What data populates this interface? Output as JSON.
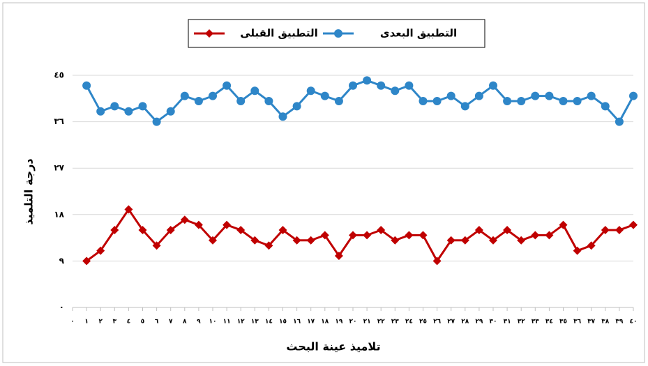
{
  "chart_data": {
    "type": "line",
    "x_label": "تلاميذ عينة البحث",
    "y_label": "درجة التلميذ",
    "x": [
      1,
      2,
      3,
      4,
      5,
      6,
      7,
      8,
      9,
      10,
      11,
      12,
      13,
      14,
      15,
      16,
      17,
      18,
      19,
      20,
      21,
      22,
      23,
      24,
      25,
      26,
      27,
      28,
      29,
      30,
      31,
      32,
      33,
      34,
      35,
      36,
      37,
      38,
      39,
      40
    ],
    "series": [
      {
        "name": "التطبيق البعدى",
        "color": "#2e86c8",
        "marker": "circle",
        "values": [
          43,
          38,
          39,
          38,
          39,
          36,
          38,
          41,
          40,
          41,
          43,
          40,
          42,
          40,
          37,
          39,
          42,
          41,
          40,
          43,
          44,
          43,
          42,
          43,
          40,
          40,
          41,
          39,
          41,
          43,
          40,
          40,
          41,
          41,
          40,
          40,
          41,
          39,
          36,
          41
        ]
      },
      {
        "name": "التطبيق القبلى",
        "color": "#c00000",
        "marker": "diamond",
        "values": [
          9,
          11,
          15,
          19,
          15,
          12,
          15,
          17,
          16,
          13,
          16,
          15,
          13,
          12,
          15,
          13,
          13,
          14,
          10,
          14,
          14,
          15,
          13,
          14,
          14,
          9,
          13,
          13,
          15,
          13,
          15,
          13,
          14,
          14,
          16,
          11,
          12,
          15,
          15,
          16
        ]
      }
    ],
    "xlim": [
      0,
      40
    ],
    "ylim": [
      0,
      45
    ],
    "yticks": [
      {
        "value": 0,
        "label": "٠"
      },
      {
        "value": 9,
        "label": "٩"
      },
      {
        "value": 18,
        "label": "١٨"
      },
      {
        "value": 27,
        "label": "٢٧"
      },
      {
        "value": 36,
        "label": "٣٦"
      },
      {
        "value": 45,
        "label": "٤٥"
      }
    ],
    "xticks": [
      {
        "value": 0,
        "label": "٠"
      },
      {
        "value": 1,
        "label": "١"
      },
      {
        "value": 2,
        "label": "٢"
      },
      {
        "value": 3,
        "label": "٣"
      },
      {
        "value": 4,
        "label": "٤"
      },
      {
        "value": 5,
        "label": "٥"
      },
      {
        "value": 6,
        "label": "٦"
      },
      {
        "value": 7,
        "label": "٧"
      },
      {
        "value": 8,
        "label": "٨"
      },
      {
        "value": 9,
        "label": "٩"
      },
      {
        "value": 10,
        "label": "١٠"
      },
      {
        "value": 11,
        "label": "١١"
      },
      {
        "value": 12,
        "label": "١٢"
      },
      {
        "value": 13,
        "label": "١٣"
      },
      {
        "value": 14,
        "label": "١٤"
      },
      {
        "value": 15,
        "label": "١٥"
      },
      {
        "value": 16,
        "label": "١٦"
      },
      {
        "value": 17,
        "label": "١٧"
      },
      {
        "value": 18,
        "label": "١٨"
      },
      {
        "value": 19,
        "label": "١٩"
      },
      {
        "value": 20,
        "label": "٢٠"
      },
      {
        "value": 21,
        "label": "٢١"
      },
      {
        "value": 22,
        "label": "٢٢"
      },
      {
        "value": 23,
        "label": "٢٣"
      },
      {
        "value": 24,
        "label": "٢٤"
      },
      {
        "value": 25,
        "label": "٢٥"
      },
      {
        "value": 26,
        "label": "٢٦"
      },
      {
        "value": 27,
        "label": "٢٧"
      },
      {
        "value": 28,
        "label": "٢٨"
      },
      {
        "value": 29,
        "label": "٢٩"
      },
      {
        "value": 30,
        "label": "٣٠"
      },
      {
        "value": 31,
        "label": "٣١"
      },
      {
        "value": 32,
        "label": "٣٢"
      },
      {
        "value": 33,
        "label": "٣٣"
      },
      {
        "value": 34,
        "label": "٣٤"
      },
      {
        "value": 35,
        "label": "٣٥"
      },
      {
        "value": 36,
        "label": "٣٦"
      },
      {
        "value": 37,
        "label": "٣٧"
      },
      {
        "value": 38,
        "label": "٣٨"
      },
      {
        "value": 39,
        "label": "٣٩"
      },
      {
        "value": 40,
        "label": "٤٠"
      }
    ],
    "grid": true
  }
}
